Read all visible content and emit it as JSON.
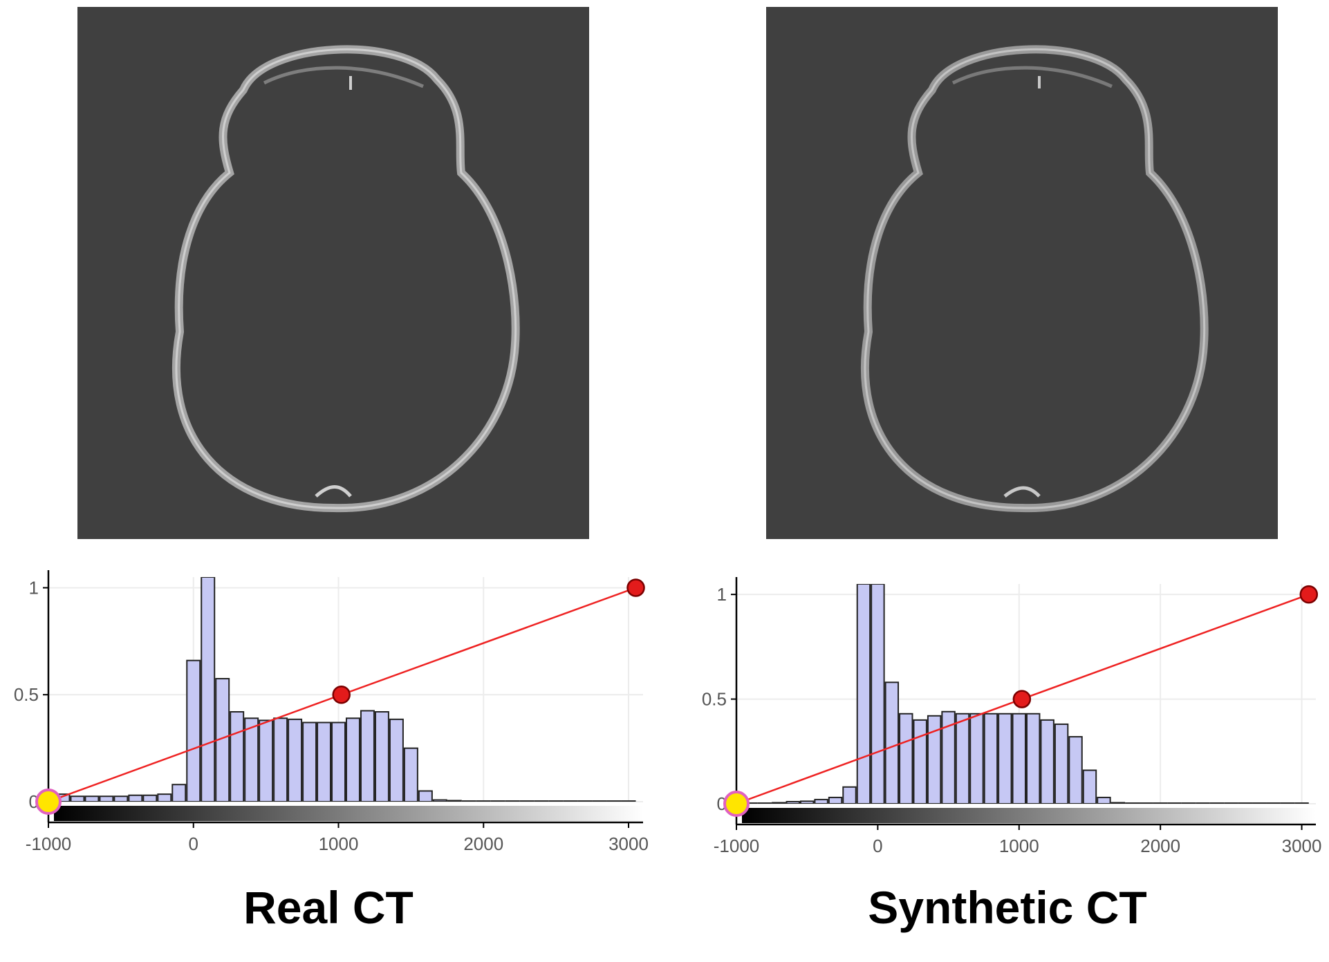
{
  "panels": [
    {
      "caption": "Real CT",
      "chart_data": {
        "type": "bar",
        "xlim": [
          -1000,
          3100
        ],
        "ylim": [
          0,
          1.05
        ],
        "x_ticks": [
          "-1000",
          "0",
          "1000",
          "2000",
          "3000"
        ],
        "y_ticks": [
          "0",
          "0.5",
          "1"
        ],
        "bins_x": [
          -900,
          -800,
          -700,
          -600,
          -500,
          -400,
          -300,
          -200,
          -100,
          0,
          100,
          200,
          300,
          400,
          500,
          600,
          700,
          800,
          900,
          1000,
          1100,
          1200,
          1300,
          1400,
          1500,
          1600,
          1700,
          1800,
          1900,
          2000,
          2100,
          2200,
          2300,
          2400,
          2500,
          2600,
          2700,
          2800,
          2900,
          3000
        ],
        "values": [
          0.035,
          0.025,
          0.025,
          0.025,
          0.025,
          0.03,
          0.03,
          0.035,
          0.08,
          0.66,
          1.05,
          0.575,
          0.42,
          0.39,
          0.38,
          0.39,
          0.385,
          0.37,
          0.37,
          0.37,
          0.39,
          0.425,
          0.42,
          0.385,
          0.25,
          0.05,
          0.008,
          0.005,
          0.003,
          0.003,
          0.003,
          0.003,
          0.003,
          0.003,
          0.003,
          0.003,
          0.003,
          0.003,
          0.003,
          0.003
        ],
        "transfer_points": [
          {
            "x": -1000,
            "y": 0
          },
          {
            "x": 1020,
            "y": 0.5
          },
          {
            "x": 3050,
            "y": 1
          }
        ]
      }
    },
    {
      "caption": "Synthetic CT",
      "chart_data": {
        "type": "bar",
        "xlim": [
          -1000,
          3100
        ],
        "ylim": [
          0,
          1.05
        ],
        "x_ticks": [
          "-1000",
          "0",
          "1000",
          "2000",
          "3000"
        ],
        "y_ticks": [
          "0",
          "0.5",
          "1"
        ],
        "bins_x": [
          -900,
          -800,
          -700,
          -600,
          -500,
          -400,
          -300,
          -200,
          -100,
          0,
          100,
          200,
          300,
          400,
          500,
          600,
          700,
          800,
          900,
          1000,
          1100,
          1200,
          1300,
          1400,
          1500,
          1600,
          1700,
          1800,
          1900,
          2000,
          2100,
          2200,
          2300,
          2400,
          2500,
          2600,
          2700,
          2800,
          2900,
          3000
        ],
        "values": [
          0.003,
          0.003,
          0.005,
          0.01,
          0.012,
          0.02,
          0.03,
          0.08,
          1.05,
          1.05,
          0.58,
          0.43,
          0.4,
          0.42,
          0.44,
          0.43,
          0.43,
          0.43,
          0.43,
          0.43,
          0.43,
          0.4,
          0.38,
          0.32,
          0.16,
          0.03,
          0.005,
          0.003,
          0.003,
          0.003,
          0.003,
          0.003,
          0.003,
          0.003,
          0.003,
          0.003,
          0.003,
          0.003,
          0.003,
          0.003
        ],
        "transfer_points": [
          {
            "x": -1000,
            "y": 0
          },
          {
            "x": 1020,
            "y": 0.5
          },
          {
            "x": 3050,
            "y": 1
          }
        ]
      }
    }
  ]
}
